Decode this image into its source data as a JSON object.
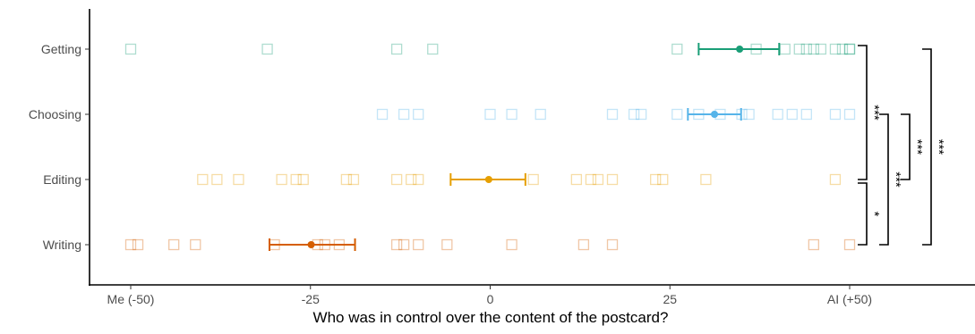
{
  "chart_data": {
    "type": "scatter",
    "title": "",
    "xlabel": "Who was in control over the content of the postcard?",
    "ylabel": "",
    "xlim": [
      -53,
      74
    ],
    "x_ticks": [
      {
        "value": -50,
        "label": "Me (-50)"
      },
      {
        "value": -25,
        "label": "-25"
      },
      {
        "value": 0,
        "label": "0"
      },
      {
        "value": 25,
        "label": "25"
      },
      {
        "value": 50,
        "label": "AI (+50)"
      }
    ],
    "categories": [
      "Getting",
      "Choosing",
      "Editing",
      "Writing"
    ],
    "grid": false,
    "legend": "none",
    "series": [
      {
        "category": "Getting",
        "color": "#1a9e77",
        "individual": [
          -50,
          -31,
          -13,
          -8,
          26,
          37,
          41,
          43,
          44,
          45,
          46,
          48,
          49,
          50,
          50
        ],
        "mean": 34.7,
        "ci": [
          29,
          40.2
        ]
      },
      {
        "category": "Choosing",
        "color": "#56b4e9",
        "individual": [
          -15,
          -12,
          -10,
          0,
          3,
          7,
          17,
          20,
          21,
          26,
          29,
          32,
          35,
          36,
          40,
          42,
          44,
          48,
          50
        ],
        "mean": 31.2,
        "ci": [
          27.5,
          34.9
        ]
      },
      {
        "category": "Editing",
        "color": "#e69f00",
        "individual": [
          -40,
          -38,
          -35,
          -29,
          -27,
          -26,
          -20,
          -19,
          -13,
          -11,
          -10,
          6,
          12,
          14,
          15,
          17,
          23,
          24,
          30,
          48
        ],
        "mean": -0.2,
        "ci": [
          -5.5,
          4.9
        ]
      },
      {
        "category": "Writing",
        "color": "#d55e00",
        "individual": [
          -50,
          -49,
          -44,
          -41,
          -30,
          -24,
          -23,
          -21,
          -13,
          -12,
          -10,
          -6,
          3,
          13,
          17,
          45,
          50
        ],
        "mean": -24.9,
        "ci": [
          -30.7,
          -18.8
        ]
      }
    ],
    "significance": [
      {
        "from": "Getting",
        "to": "Editing",
        "label": "***"
      },
      {
        "from": "Editing",
        "to": "Writing",
        "label": "*"
      },
      {
        "from": "Choosing",
        "to": "Writing",
        "label": "***"
      },
      {
        "from": "Choosing",
        "to": "Editing",
        "label": "***"
      },
      {
        "from": "Getting",
        "to": "Writing",
        "label": "***"
      }
    ]
  }
}
